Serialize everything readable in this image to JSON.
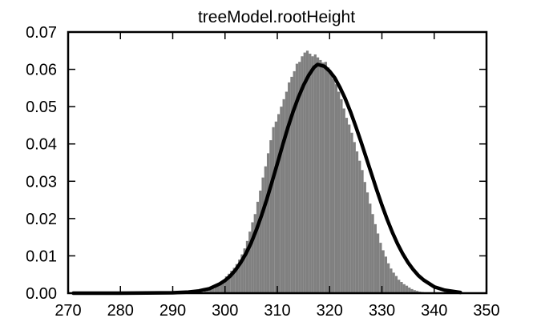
{
  "chart_data": {
    "type": "bar",
    "title": "treeModel.rootHeight",
    "xlabel": "",
    "ylabel": "",
    "xlim": [
      270,
      350
    ],
    "ylim": [
      0.0,
      0.07
    ],
    "x_ticks": [
      "270",
      "280",
      "290",
      "300",
      "310",
      "320",
      "330",
      "340",
      "350"
    ],
    "y_ticks": [
      "0.00",
      "0.01",
      "0.02",
      "0.03",
      "0.04",
      "0.05",
      "0.06",
      "0.07"
    ],
    "grid": false,
    "legend": "none",
    "series": [
      {
        "kind": "histogram",
        "color": "#808080",
        "bin_width": 0.5,
        "x": [
          296,
          296.5,
          297,
          297.5,
          298,
          298.5,
          299,
          299.5,
          300,
          300.5,
          301,
          301.5,
          302,
          302.5,
          303,
          303.5,
          304,
          304.5,
          305,
          305.5,
          306,
          306.5,
          307,
          307.5,
          308,
          308.5,
          309,
          309.5,
          310,
          310.5,
          311,
          311.5,
          312,
          312.5,
          313,
          313.5,
          314,
          314.5,
          315,
          315.5,
          316,
          316.5,
          317,
          317.5,
          318,
          318.5,
          319,
          319.5,
          320,
          320.5,
          321,
          321.5,
          322,
          322.5,
          323,
          323.5,
          324,
          324.5,
          325,
          325.5,
          326,
          326.5,
          327,
          327.5,
          328,
          328.5,
          329,
          329.5,
          330,
          330.5,
          331,
          331.5,
          332,
          332.5,
          333,
          333.5,
          334,
          334.5,
          335,
          335.5,
          336,
          336.5,
          337,
          337.5,
          338,
          338.5
        ],
        "values": [
          0.0005,
          0.0006,
          0.0009,
          0.0012,
          0.0017,
          0.0023,
          0.003,
          0.0035,
          0.0045,
          0.0052,
          0.006,
          0.0068,
          0.0078,
          0.009,
          0.0104,
          0.012,
          0.014,
          0.0165,
          0.019,
          0.0212,
          0.0245,
          0.0275,
          0.031,
          0.034,
          0.0375,
          0.041,
          0.0445,
          0.046,
          0.048,
          0.05,
          0.052,
          0.054,
          0.0565,
          0.058,
          0.0595,
          0.0615,
          0.062,
          0.0635,
          0.0645,
          0.065,
          0.0642,
          0.0635,
          0.064,
          0.0632,
          0.0625,
          0.0618,
          0.062,
          0.0605,
          0.059,
          0.0575,
          0.056,
          0.054,
          0.052,
          0.0495,
          0.047,
          0.0452,
          0.043,
          0.0405,
          0.038,
          0.0355,
          0.033,
          0.0298,
          0.027,
          0.024,
          0.0212,
          0.0185,
          0.016,
          0.0135,
          0.0115,
          0.0098,
          0.008,
          0.0066,
          0.0055,
          0.0046,
          0.0036,
          0.003,
          0.0024,
          0.002,
          0.0015,
          0.0011,
          0.0008,
          0.0006,
          0.0004,
          0.0003,
          0.0002,
          0.0001
        ]
      },
      {
        "kind": "line",
        "color": "#000000",
        "x": [
          271,
          280,
          290,
          293,
          295,
          297,
          299,
          300,
          301,
          302,
          303,
          304,
          305,
          306,
          307,
          308,
          309,
          310,
          311,
          312,
          313,
          314,
          315,
          316,
          317,
          317.7,
          318,
          319,
          320,
          321,
          322,
          323,
          324,
          325,
          326,
          327,
          328,
          329,
          330,
          331,
          332,
          333,
          334,
          335,
          336,
          337,
          338,
          340,
          342,
          345
        ],
        "values": [
          0.0,
          0.0,
          0.0001,
          0.0003,
          0.0006,
          0.0012,
          0.0025,
          0.0034,
          0.0046,
          0.0062,
          0.0082,
          0.0106,
          0.0135,
          0.017,
          0.0209,
          0.0252,
          0.0299,
          0.0347,
          0.0396,
          0.0443,
          0.0486,
          0.0524,
          0.0557,
          0.0584,
          0.0605,
          0.0613,
          0.0612,
          0.0608,
          0.0595,
          0.0577,
          0.0551,
          0.0521,
          0.0486,
          0.0447,
          0.0406,
          0.0363,
          0.032,
          0.0277,
          0.0236,
          0.0198,
          0.0163,
          0.0132,
          0.0105,
          0.0082,
          0.0063,
          0.0047,
          0.0035,
          0.0017,
          0.0008,
          0.0002
        ]
      }
    ]
  }
}
